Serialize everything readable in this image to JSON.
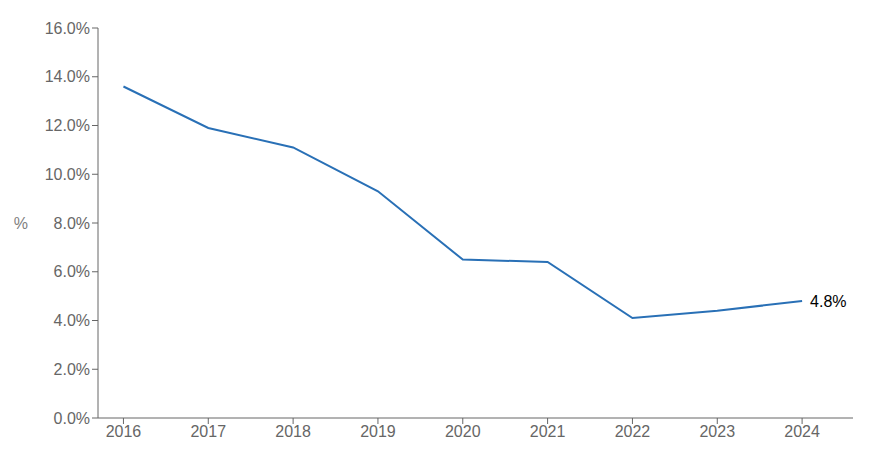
{
  "chart_data": {
    "type": "line",
    "x": [
      2016,
      2017,
      2018,
      2019,
      2020,
      2021,
      2022,
      2023,
      2024
    ],
    "values": [
      0.136,
      0.119,
      0.111,
      0.093,
      0.065,
      0.064,
      0.041,
      0.044,
      0.048
    ],
    "color": "#2970B6",
    "ylabel": "%",
    "xlim": [
      2015.7,
      2024.6
    ],
    "xticks": [
      2016,
      2017,
      2018,
      2019,
      2020,
      2021,
      2022,
      2023,
      2024
    ],
    "ylim": [
      0.0,
      0.16
    ],
    "yticks": [
      {
        "value": 0.0,
        "label": "0.0%"
      },
      {
        "value": 0.02,
        "label": "2.0%"
      },
      {
        "value": 0.04,
        "label": "4.0%"
      },
      {
        "value": 0.06,
        "label": "6.0%"
      },
      {
        "value": 0.08,
        "label": "8.0%"
      },
      {
        "value": 0.1,
        "label": "10.0%"
      },
      {
        "value": 0.12,
        "label": "12.0%"
      },
      {
        "value": 0.14,
        "label": "14.0%"
      },
      {
        "value": 0.16,
        "label": "16.0%"
      }
    ],
    "annotations": [
      {
        "text": "4.8%",
        "x": 2024,
        "y": 0.048
      }
    ],
    "grid": false
  }
}
